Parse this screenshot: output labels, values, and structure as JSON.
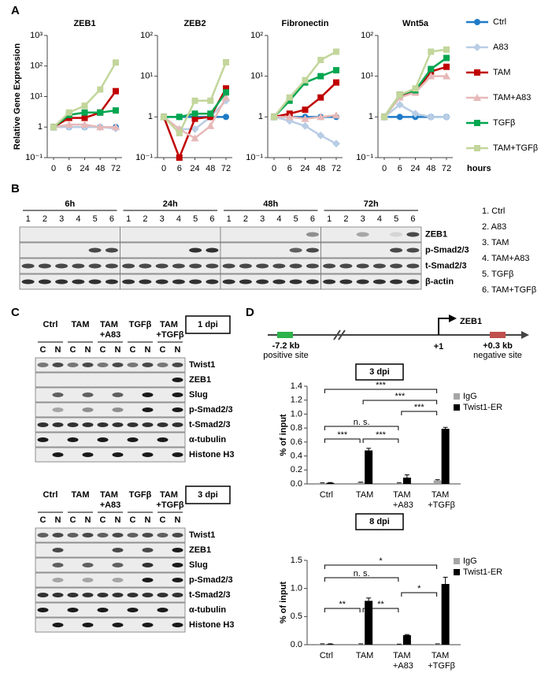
{
  "panel_labels": [
    "A",
    "B",
    "C",
    "D"
  ],
  "chart_data": [
    {
      "type": "line",
      "title": "ZEB1",
      "ylabel": "Relative Gene Expression",
      "categories": [
        "0",
        "6",
        "24",
        "48",
        "72"
      ],
      "log_scale": true,
      "ylim": [
        0.1,
        1000
      ],
      "yticks": [
        {
          "value": 0.1,
          "label": "10⁻¹"
        },
        1,
        {
          "value": 10,
          "label": "10¹"
        },
        {
          "value": 100,
          "label": "10²"
        },
        {
          "value": 1000,
          "label": "10³"
        }
      ],
      "series": [
        {
          "name": "Ctrl",
          "color": "#1f7bc8",
          "marker": "circle",
          "values": [
            1,
            1,
            1,
            1,
            1
          ]
        },
        {
          "name": "A83",
          "color": "#b9cde5",
          "marker": "diamond",
          "values": [
            1,
            1,
            1,
            1,
            0.9
          ]
        },
        {
          "name": "TAM",
          "color": "#c00000",
          "marker": "square",
          "values": [
            1,
            2,
            2,
            3,
            15
          ]
        },
        {
          "name": "TAM+A83",
          "color": "#e6b9b8",
          "marker": "triangle",
          "values": [
            1,
            1.2,
            1.2,
            1,
            1
          ]
        },
        {
          "name": "TGFβ",
          "color": "#00a650",
          "marker": "square",
          "values": [
            1,
            2.5,
            3,
            3,
            3.5
          ]
        },
        {
          "name": "TAM+TGFβ",
          "color": "#c3d69b",
          "marker": "square",
          "values": [
            1,
            3,
            5,
            17,
            130
          ]
        }
      ]
    },
    {
      "type": "line",
      "title": "ZEB2",
      "categories": [
        "0",
        "6",
        "24",
        "48",
        "72"
      ],
      "log_scale": true,
      "ylim": [
        0.1,
        100
      ],
      "yticks": [
        {
          "value": 0.1,
          "label": "10⁻¹"
        },
        1,
        {
          "value": 10,
          "label": "10¹"
        },
        {
          "value": 100,
          "label": "10²"
        }
      ],
      "series": [
        {
          "color": "#1f7bc8",
          "marker": "circle",
          "values": [
            1,
            1,
            1,
            1,
            1
          ]
        },
        {
          "color": "#b9cde5",
          "marker": "diamond",
          "values": [
            1,
            0.5,
            0.5,
            1,
            2.5
          ]
        },
        {
          "color": "#c00000",
          "marker": "square",
          "values": [
            1,
            0.1,
            0.9,
            1,
            5
          ]
        },
        {
          "color": "#e6b9b8",
          "marker": "triangle",
          "values": [
            1,
            0.5,
            0.3,
            0.6,
            3
          ]
        },
        {
          "color": "#00a650",
          "marker": "square",
          "values": [
            1,
            1,
            1.2,
            1.2,
            4
          ]
        },
        {
          "color": "#c3d69b",
          "marker": "square",
          "values": [
            1,
            0.4,
            2.5,
            2.5,
            22
          ]
        }
      ]
    },
    {
      "type": "line",
      "title": "Fibronectin",
      "categories": [
        "0",
        "6",
        "24",
        "48",
        "72"
      ],
      "log_scale": true,
      "ylim": [
        0.1,
        100
      ],
      "yticks": [
        {
          "value": 0.1,
          "label": "10⁻¹"
        },
        1,
        {
          "value": 10,
          "label": "10¹"
        },
        {
          "value": 100,
          "label": "10²"
        }
      ],
      "series": [
        {
          "color": "#1f7bc8",
          "marker": "circle",
          "values": [
            1,
            1,
            1,
            1,
            1
          ]
        },
        {
          "color": "#b9cde5",
          "marker": "diamond",
          "values": [
            1,
            0.8,
            0.6,
            0.35,
            0.22
          ]
        },
        {
          "color": "#c00000",
          "marker": "square",
          "values": [
            1,
            1.2,
            1.5,
            3,
            7
          ]
        },
        {
          "color": "#e6b9b8",
          "marker": "triangle",
          "values": [
            1,
            1,
            0.9,
            1,
            1.1
          ]
        },
        {
          "color": "#00a650",
          "marker": "square",
          "values": [
            1,
            2.5,
            7,
            10,
            14
          ]
        },
        {
          "color": "#c3d69b",
          "marker": "square",
          "values": [
            1,
            3,
            8,
            25,
            40
          ]
        }
      ]
    },
    {
      "type": "line",
      "title": "Wnt5a",
      "xlabel": "hours",
      "categories": [
        "0",
        "6",
        "24",
        "48",
        "72"
      ],
      "log_scale": true,
      "ylim": [
        0.1,
        100
      ],
      "yticks": [
        {
          "value": 0.1,
          "label": "10⁻¹"
        },
        1,
        {
          "value": 10,
          "label": "10¹"
        },
        {
          "value": 100,
          "label": "10²"
        }
      ],
      "series": [
        {
          "color": "#1f7bc8",
          "marker": "circle",
          "values": [
            1,
            1,
            1,
            1,
            1
          ]
        },
        {
          "color": "#b9cde5",
          "marker": "diamond",
          "values": [
            1,
            2,
            1.2,
            1,
            1
          ]
        },
        {
          "color": "#c00000",
          "marker": "square",
          "values": [
            1,
            3.5,
            4,
            13,
            17
          ]
        },
        {
          "color": "#e6b9b8",
          "marker": "triangle",
          "values": [
            1,
            3,
            4,
            10,
            10
          ]
        },
        {
          "color": "#00a650",
          "marker": "square",
          "values": [
            1,
            3.5,
            4.5,
            15,
            28
          ]
        },
        {
          "color": "#c3d69b",
          "marker": "square",
          "values": [
            1,
            3.5,
            5,
            40,
            45
          ]
        }
      ]
    },
    {
      "type": "bar",
      "title": "3 dpi",
      "ylabel": "% of input",
      "categories": [
        "Ctrl",
        "TAM",
        "TAM +A83",
        "TAM +TGFβ"
      ],
      "ylim": [
        0,
        1.4
      ],
      "yticks": [
        {
          "value": 0,
          "label": "0.0"
        },
        0.2,
        0.4,
        0.6,
        0.8,
        {
          "value": 1,
          "label": "1.0"
        },
        1.2,
        1.4
      ],
      "series": [
        {
          "name": "IgG",
          "color": "#a6a6a6",
          "values": [
            0.01,
            0.02,
            0.01,
            0.05
          ],
          "errors": [
            0.005,
            0.005,
            0.005,
            0.01
          ]
        },
        {
          "name": "Twist1-ER",
          "color": "#000000",
          "values": [
            0.015,
            0.48,
            0.09,
            0.79
          ],
          "errors": [
            0.005,
            0.03,
            0.04,
            0.02
          ]
        }
      ],
      "annotations": [
        "***",
        "***",
        "***",
        "n. s.",
        "***",
        "***"
      ]
    },
    {
      "type": "bar",
      "title": "8 dpi",
      "ylabel": "% of input",
      "categories": [
        "Ctrl",
        "TAM",
        "TAM +A83",
        "TAM +TGFβ"
      ],
      "ylim": [
        0,
        1.5
      ],
      "yticks": [
        {
          "value": 0,
          "label": "0.0"
        },
        0.5,
        {
          "value": 1,
          "label": "1.0"
        },
        1.5
      ],
      "series": [
        {
          "name": "IgG",
          "color": "#a6a6a6",
          "values": [
            0.01,
            0.01,
            0.005,
            0.01
          ],
          "errors": [
            0.005,
            0.005,
            0.005,
            0.005
          ]
        },
        {
          "name": "Twist1-ER",
          "color": "#000000",
          "values": [
            0.01,
            0.78,
            0.17,
            1.08
          ],
          "errors": [
            0.005,
            0.05,
            0.01,
            0.12
          ]
        }
      ],
      "annotations": [
        "*",
        "n. s.",
        "*",
        "**",
        "**"
      ]
    }
  ],
  "blot_b": {
    "timepoints": [
      "6h",
      "24h",
      "48h",
      "72h"
    ],
    "lanes": [
      "1",
      "2",
      "3",
      "4",
      "5",
      "6"
    ],
    "rows": [
      "ZEB1",
      "p-Smad2/3",
      "t-Smad2/3",
      "β-actin"
    ],
    "key": [
      "1. Ctrl",
      "2. A83",
      "3. TAM",
      "4. TAM+A83",
      "5. TGFβ",
      "6. TAM+TGFβ"
    ]
  },
  "blot_c": [
    {
      "groups": [
        "Ctrl",
        "TAM",
        "TAM +A83",
        "TGFβ",
        "TAM +TGFβ"
      ],
      "fractions": [
        "C",
        "N"
      ],
      "dpi": "1 dpi",
      "rows": [
        "Twist1",
        "ZEB1",
        "Slug",
        "p-Smad2/3",
        "t-Smad2/3",
        "α-tubulin",
        "Histone H3"
      ]
    },
    {
      "groups": [
        "Ctrl",
        "TAM",
        "TAM +A83",
        "TGFβ",
        "TAM +TGFβ"
      ],
      "fractions": [
        "C",
        "N"
      ],
      "dpi": "3 dpi",
      "rows": [
        "Twist1",
        "ZEB1",
        "Slug",
        "p-Smad2/3",
        "t-Smad2/3",
        "α-tubulin",
        "Histone H3"
      ]
    }
  ],
  "diagram": {
    "gene": "ZEB1",
    "tss": "+1",
    "sites": [
      {
        "position": "-7.2 kb",
        "label": "positive site"
      },
      {
        "position": "+0.3 kb",
        "label": "negative site"
      }
    ]
  }
}
